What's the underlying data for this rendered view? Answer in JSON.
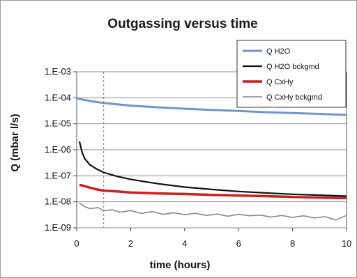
{
  "chart_data": {
    "type": "line",
    "title": "Outgassing versus time",
    "xlabel": "time (hours)",
    "ylabel": "Q (mbar l/s)",
    "xlim": [
      0,
      10
    ],
    "ylim": [
      1e-09,
      0.001
    ],
    "yscale": "log",
    "grid": "horizontal",
    "legend_position": "top-right",
    "x_ticks": [
      "0",
      "2",
      "4",
      "6",
      "8",
      "10"
    ],
    "y_ticks": [
      "1.E-03",
      "1.E-04",
      "1.E-05",
      "1.E-06",
      "1.E-07",
      "1.E-08",
      "1.E-09"
    ],
    "reference_line_x": 1,
    "series": [
      {
        "name": "Q H2O",
        "color": "#6f95c7",
        "x": [
          0,
          0.5,
          1,
          1.5,
          2,
          3,
          4,
          5,
          6,
          7,
          8,
          9,
          10
        ],
        "y": [
          9.5e-05,
          7.5e-05,
          6.3e-05,
          5.6e-05,
          5e-05,
          4.3e-05,
          3.8e-05,
          3.4e-05,
          3.1e-05,
          2.8e-05,
          2.6e-05,
          2.4e-05,
          2.2e-05
        ]
      },
      {
        "name": "Q H2O bckgmd",
        "color": "#111111",
        "x": [
          0.1,
          0.2,
          0.3,
          0.5,
          0.75,
          1,
          1.5,
          2,
          2.5,
          3,
          4,
          5,
          6,
          7,
          8,
          9,
          10
        ],
        "y": [
          2.1e-06,
          8e-07,
          4.5e-07,
          2.6e-07,
          1.8e-07,
          1.35e-07,
          9.5e-08,
          7.3e-08,
          6e-08,
          5e-08,
          3.7e-08,
          3e-08,
          2.5e-08,
          2.2e-08,
          1.95e-08,
          1.8e-08,
          1.65e-08
        ]
      },
      {
        "name": "Q CxHy",
        "color": "#cc1f1f",
        "x": [
          0.1,
          0.3,
          0.5,
          0.75,
          1,
          1.5,
          2,
          2.5,
          3,
          4,
          5,
          6,
          7,
          8,
          9,
          10
        ],
        "y": [
          4.5e-08,
          4e-08,
          3.5e-08,
          3e-08,
          2.7e-08,
          2.5e-08,
          2.3e-08,
          2.2e-08,
          2.1e-08,
          2e-08,
          1.85e-08,
          1.75e-08,
          1.65e-08,
          1.55e-08,
          1.45e-08,
          1.4e-08
        ]
      },
      {
        "name": "Q CxHy bckgmd",
        "color": "#888888",
        "x": [
          0.1,
          0.3,
          0.5,
          0.8,
          1,
          1.3,
          1.6,
          2,
          2.4,
          2.8,
          3.2,
          3.6,
          4,
          4.4,
          4.8,
          5.2,
          5.6,
          6,
          6.4,
          6.8,
          7.2,
          7.6,
          8,
          8.4,
          8.8,
          9.2,
          9.6,
          10
        ],
        "y": [
          9e-09,
          6.5e-09,
          5.5e-09,
          6e-09,
          4.5e-09,
          5e-09,
          4e-09,
          4.6e-09,
          3.6e-09,
          4.2e-09,
          3.3e-09,
          3.8e-09,
          3.2e-09,
          3.6e-09,
          3e-09,
          3.4e-09,
          2.8e-09,
          3.3e-09,
          2.9e-09,
          3.1e-09,
          2.6e-09,
          3e-09,
          2.5e-09,
          2.9e-09,
          2.4e-09,
          2.7e-09,
          2e-09,
          3e-09
        ]
      }
    ]
  }
}
